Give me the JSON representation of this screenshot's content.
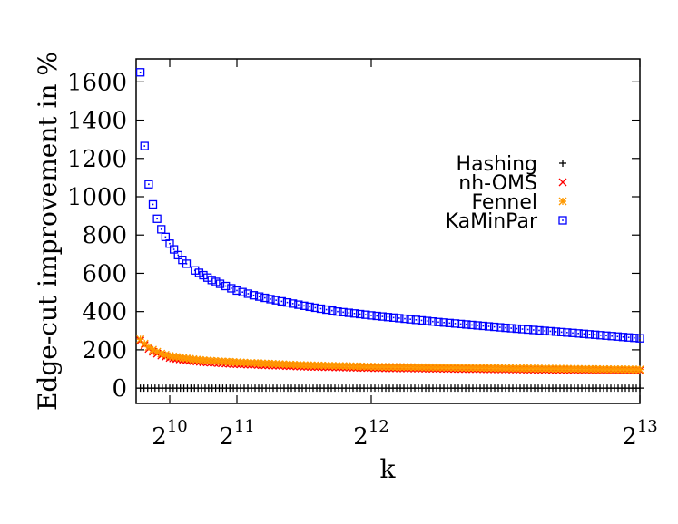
{
  "chart_data": {
    "type": "scatter",
    "title": "",
    "xlabel": "k",
    "ylabel": "Edge-cut improvement in %",
    "xscale": "linear",
    "xlim": [
      512,
      8192
    ],
    "ylim": [
      -80,
      1720
    ],
    "legend_position": "top-right",
    "grid": false,
    "y_ticks": [
      "0",
      "200",
      "400",
      "600",
      "800",
      "1000",
      "1200",
      "1400",
      "1600"
    ],
    "x_ticks": [
      {
        "value": 1024,
        "base": "2",
        "exp": "10"
      },
      {
        "value": 2048,
        "base": "2",
        "exp": "11"
      },
      {
        "value": 4096,
        "base": "2",
        "exp": "12"
      },
      {
        "value": 8192,
        "base": "2",
        "exp": "13"
      }
    ],
    "series": [
      {
        "name": "Hashing",
        "marker": "plus",
        "color": "#000000",
        "points": [
          [
            576,
            0
          ],
          [
            1024,
            0
          ],
          [
            2048,
            0
          ],
          [
            4096,
            0
          ],
          [
            8192,
            0
          ]
        ]
      },
      {
        "name": "nh-OMS",
        "marker": "cross",
        "color": "#ff0000",
        "points": [
          [
            576,
            248
          ],
          [
            640,
            225
          ],
          [
            704,
            205
          ],
          [
            768,
            190
          ],
          [
            896,
            170
          ],
          [
            1024,
            158
          ],
          [
            1280,
            145
          ],
          [
            1536,
            135
          ],
          [
            2048,
            125
          ],
          [
            3072,
            112
          ],
          [
            4096,
            105
          ],
          [
            6144,
            98
          ],
          [
            8192,
            92
          ]
        ]
      },
      {
        "name": "Fennel",
        "marker": "star",
        "color": "#ff9900",
        "points": [
          [
            576,
            255
          ],
          [
            640,
            232
          ],
          [
            704,
            215
          ],
          [
            768,
            200
          ],
          [
            896,
            180
          ],
          [
            1024,
            168
          ],
          [
            1280,
            155
          ],
          [
            1536,
            145
          ],
          [
            2048,
            135
          ],
          [
            3072,
            120
          ],
          [
            4096,
            112
          ],
          [
            6144,
            104
          ],
          [
            8192,
            97
          ]
        ]
      },
      {
        "name": "KaMinPar",
        "marker": "square",
        "color": "#0000ff",
        "points": [
          [
            576,
            1650
          ],
          [
            640,
            1265
          ],
          [
            704,
            1065
          ],
          [
            768,
            960
          ],
          [
            832,
            885
          ],
          [
            896,
            830
          ],
          [
            960,
            790
          ],
          [
            1024,
            755
          ],
          [
            1088,
            725
          ],
          [
            1152,
            695
          ],
          [
            1216,
            670
          ],
          [
            1280,
            650
          ],
          [
            1408,
            615
          ],
          [
            1536,
            590
          ],
          [
            1664,
            565
          ],
          [
            1792,
            545
          ],
          [
            2048,
            510
          ],
          [
            2304,
            485
          ],
          [
            2560,
            465
          ],
          [
            3072,
            430
          ],
          [
            3584,
            400
          ],
          [
            4096,
            380
          ],
          [
            5120,
            345
          ],
          [
            6144,
            315
          ],
          [
            7168,
            288
          ],
          [
            8192,
            260
          ]
        ]
      }
    ]
  }
}
